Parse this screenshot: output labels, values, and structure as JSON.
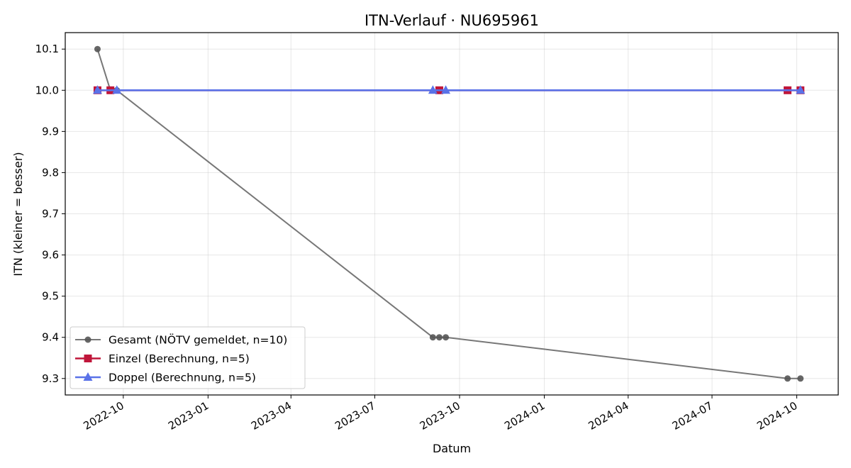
{
  "chart_data": {
    "type": "line",
    "title": "ITN-Verlauf · NU695961",
    "xlabel": "Datum",
    "ylabel": "ITN  (kleiner = besser)",
    "x_axis": "date",
    "xlim": [
      "2022-07-30",
      "2024-11-15"
    ],
    "ylim": [
      9.26,
      10.14
    ],
    "x_ticks": [
      "2022-10",
      "2023-01",
      "2023-04",
      "2023-07",
      "2023-10",
      "2024-01",
      "2024-04",
      "2024-07",
      "2024-10"
    ],
    "x_tick_dates": [
      "2022-10-01",
      "2023-01-01",
      "2023-04-01",
      "2023-07-01",
      "2023-10-01",
      "2024-01-01",
      "2024-04-01",
      "2024-07-01",
      "2024-10-01"
    ],
    "y_ticks": [
      "9.3",
      "9.4",
      "9.5",
      "9.6",
      "9.7",
      "9.8",
      "9.9",
      "10.0",
      "10.1"
    ],
    "grid": true,
    "legend_position": "lower-left",
    "series": [
      {
        "name": "Gesamt (NÖTV gemeldet, n=10)",
        "color": "#555555",
        "marker": "circle",
        "x": [
          "2022-09-03",
          "2022-09-17",
          "2022-09-24",
          "2023-09-02",
          "2023-09-09",
          "2023-09-16",
          "2024-09-21",
          "2024-10-05"
        ],
        "y": [
          10.1,
          10.0,
          10.0,
          9.4,
          9.4,
          9.4,
          9.3,
          9.3
        ]
      },
      {
        "name": "Einzel (Berechnung, n=5)",
        "color": "#c0163a",
        "marker": "square",
        "x": [
          "2022-09-03",
          "2022-09-17",
          "2023-09-09",
          "2024-09-21",
          "2024-10-05"
        ],
        "y": [
          10.0,
          10.0,
          10.0,
          10.0,
          10.0
        ]
      },
      {
        "name": "Doppel (Berechnung, n=5)",
        "color": "#5a72e8",
        "marker": "triangle",
        "x": [
          "2022-09-03",
          "2022-09-24",
          "2023-09-02",
          "2023-09-16",
          "2024-10-05"
        ],
        "y": [
          10.0,
          10.0,
          10.0,
          10.0,
          10.0
        ]
      }
    ]
  }
}
